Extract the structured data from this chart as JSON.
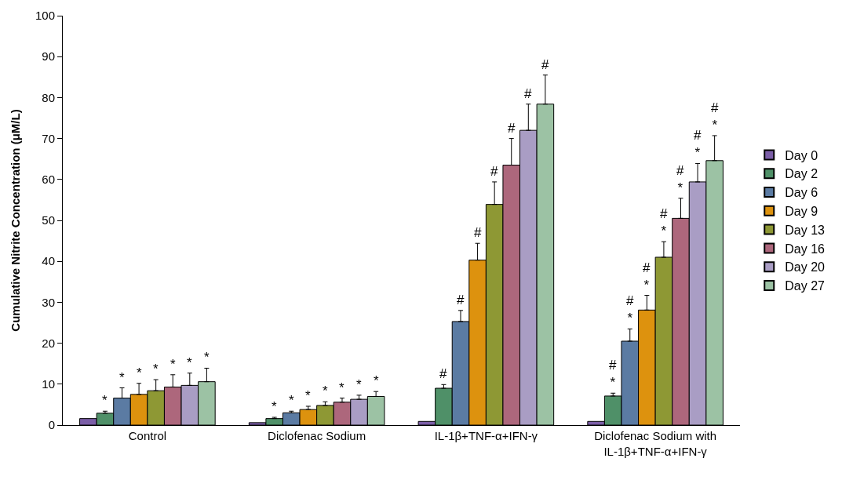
{
  "chart_data": {
    "type": "bar",
    "ylabel": "Cumulative Nitrite Concentration (μM/L)",
    "categories": [
      "Control",
      "Diclofenac Sodium",
      "IL-1β+TNF-α+IFN-γ",
      "Diclofenac Sodium with\nIL-1β+TNF-α+IFN-γ"
    ],
    "series": [
      {
        "name": "Day 0",
        "color": "#7b5ea7",
        "values": [
          1.6,
          0.6,
          0.9,
          0.9
        ],
        "value_labels": [
          null,
          null,
          null,
          null
        ]
      },
      {
        "name": "Day 2",
        "color": "#4f9068",
        "values": [
          2.9,
          1.6,
          9.0,
          7.1
        ],
        "errors": [
          0.5,
          0.3,
          0.9,
          0.7
        ],
        "value_labels": [
          "*",
          "*",
          "#",
          "#\n*"
        ]
      },
      {
        "name": "Day 6",
        "color": "#5b7ba3",
        "values": [
          6.6,
          3.0,
          25.3,
          20.5
        ],
        "errors": [
          2.5,
          0.4,
          2.7,
          3.0
        ],
        "value_labels": [
          "*",
          "*",
          "#",
          "#\n*"
        ]
      },
      {
        "name": "Day 9",
        "color": "#dd920e",
        "values": [
          7.5,
          3.8,
          40.3,
          28.1
        ],
        "errors": [
          2.7,
          0.8,
          4.1,
          3.6
        ],
        "value_labels": [
          "*",
          "*",
          "#",
          "#\n*"
        ]
      },
      {
        "name": "Day 13",
        "color": "#8e9834",
        "values": [
          8.4,
          4.8,
          53.9,
          41.0
        ],
        "errors": [
          2.7,
          0.9,
          5.5,
          3.8
        ],
        "value_labels": [
          "*",
          "*",
          "#",
          "#\n*"
        ]
      },
      {
        "name": "Day 16",
        "color": "#ad677c",
        "values": [
          9.3,
          5.6,
          63.5,
          50.5
        ],
        "errors": [
          3.0,
          1.0,
          6.5,
          4.9
        ],
        "value_labels": [
          "*",
          "*",
          "#",
          "#\n*"
        ]
      },
      {
        "name": "Day 20",
        "color": "#a99dc4",
        "values": [
          9.7,
          6.3,
          72.0,
          59.4
        ],
        "errors": [
          3.0,
          1.0,
          6.4,
          4.5
        ],
        "value_labels": [
          "*",
          "*",
          "#",
          "#\n*"
        ]
      },
      {
        "name": "Day 27",
        "color": "#9cc2a4",
        "values": [
          10.6,
          7.0,
          78.4,
          64.6
        ],
        "errors": [
          3.3,
          1.2,
          7.1,
          6.1
        ],
        "value_labels": [
          "*",
          "*",
          "#",
          "#\n*"
        ]
      }
    ],
    "ylim": [
      0,
      100
    ],
    "yticks": [
      0,
      10,
      20,
      30,
      40,
      50,
      60,
      70,
      80,
      90,
      100
    ],
    "legend": "right"
  }
}
